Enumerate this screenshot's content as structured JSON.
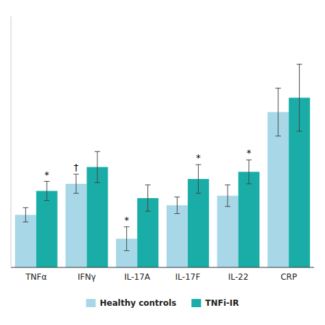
{
  "chart_data": {
    "type": "bar",
    "categories": [
      "TNFα",
      "IFNγ",
      "IL-17A",
      "IL-17F",
      "IL-22",
      "CRP"
    ],
    "series": [
      {
        "name": "Healthy controls",
        "color": "#a8d8e8",
        "values": [
          2.2,
          3.5,
          1.2,
          2.6,
          3.0,
          6.5
        ],
        "errors": [
          0.3,
          0.4,
          0.5,
          0.35,
          0.45,
          1.0
        ]
      },
      {
        "name": "TNFi-IR",
        "color": "#1aada8",
        "values": [
          3.2,
          4.2,
          2.9,
          3.7,
          4.0,
          7.1
        ],
        "errors": [
          0.4,
          0.65,
          0.55,
          0.6,
          0.5,
          1.4
        ]
      }
    ],
    "annotations": [
      {
        "text": "*",
        "category": "TNFα",
        "series": "TNFi-IR"
      },
      {
        "text": "†",
        "category": "IFNγ",
        "series": "Healthy controls"
      },
      {
        "text": "*",
        "category": "IL-17A",
        "series": "Healthy controls"
      },
      {
        "text": "*",
        "category": "IL-17F",
        "series": "TNFi-IR"
      },
      {
        "text": "*",
        "category": "IL-22",
        "series": "TNFi-IR"
      }
    ],
    "ylim": [
      0,
      10.5
    ],
    "tick_labels": "x",
    "grid": false,
    "legend": "bottom"
  }
}
